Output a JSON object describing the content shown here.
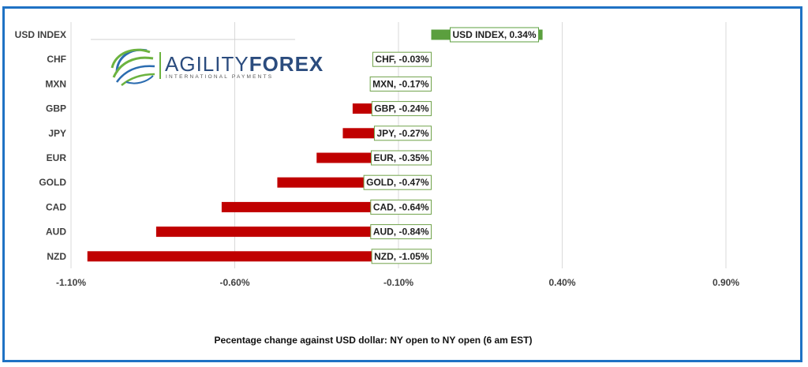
{
  "chart_data": {
    "type": "bar",
    "orientation": "horizontal",
    "categories": [
      "USD INDEX",
      "CHF",
      "MXN",
      "GBP",
      "JPY",
      "EUR",
      "GOLD",
      "CAD",
      "AUD",
      "NZD"
    ],
    "values": [
      0.34,
      -0.03,
      -0.17,
      -0.24,
      -0.27,
      -0.35,
      -0.47,
      -0.64,
      -0.84,
      -1.05
    ],
    "data_labels": [
      "USD INDEX, 0.34%",
      "CHF, -0.03%",
      "MXN, -0.17%",
      "GBP, -0.24%",
      "JPY, -0.27%",
      "EUR, -0.35%",
      "GOLD, -0.47%",
      "CAD, -0.64%",
      "AUD, -0.84%",
      "NZD, -1.05%"
    ],
    "x_ticks": [
      -1.1,
      -0.6,
      -0.1,
      0.4,
      0.9
    ],
    "x_tick_labels": [
      "-1.10%",
      "-0.60%",
      "-0.10%",
      "0.40%",
      "0.90%"
    ],
    "xlim": [
      -1.1,
      0.9
    ],
    "xlabel": "Pecentage change against USD dollar:  NY open to NY open  (6 am EST)",
    "ylabel": "",
    "grid": "vertical",
    "colors": {
      "positive": "#5b9f3e",
      "negative": "#c00000",
      "label_border_positive": "#5b9f3e",
      "label_border_negative": "#70a24a",
      "grid": "#d9d9d9",
      "frame": "#1f72c4"
    }
  },
  "logo": {
    "word_light": "AGILITY",
    "word_bold": "FOREX",
    "tagline": "INTERNATIONAL PAYMENTS",
    "colors": {
      "text": "#2b4c7e",
      "swoosh_green": "#6cb33f",
      "swoosh_blue": "#2b6cb0"
    }
  }
}
